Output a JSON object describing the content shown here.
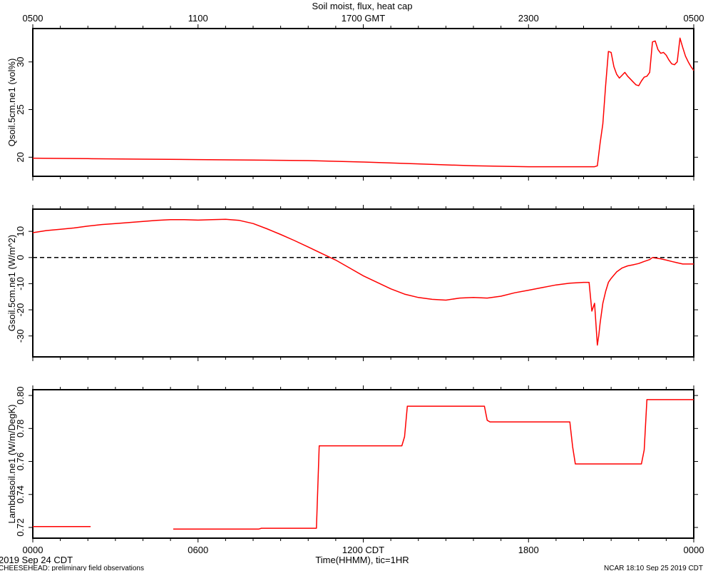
{
  "title": "Soil moist, flux, heat cap",
  "top_axis": {
    "ticks": [
      {
        "hour": 0,
        "label": "0500"
      },
      {
        "hour": 6,
        "label": "1100"
      },
      {
        "hour": 12,
        "label": "1700 GMT"
      },
      {
        "hour": 18,
        "label": "2300"
      },
      {
        "hour": 24,
        "label": "0500"
      }
    ]
  },
  "bottom_axis": {
    "ticks": [
      {
        "hour": 0,
        "label": "0000"
      },
      {
        "hour": 6,
        "label": "0600"
      },
      {
        "hour": 12,
        "label": "1200 CDT"
      },
      {
        "hour": 18,
        "label": "1800"
      },
      {
        "hour": 24,
        "label": "0000"
      }
    ],
    "xlabel": "Time(HHMM), tic=1HR",
    "start_label": "2019 Sep 24 CDT"
  },
  "footer": {
    "left": "CHEESEHEAD: preliminary field observations",
    "right": "NCAR 18:10 Sep 25 2019 CDT"
  },
  "colors": {
    "series": "#ff0000",
    "axis": "#000000",
    "zero_line": "#000000"
  },
  "chart_data": [
    {
      "type": "line",
      "ylabel": "Qsoil.5cm.ne1 (vol%)",
      "xlim": [
        0,
        24
      ],
      "ylim": [
        18,
        33.5
      ],
      "yticks": [
        20,
        25,
        30
      ],
      "series": [
        {
          "x": [
            0,
            2,
            4,
            6,
            8,
            10,
            12,
            14,
            16,
            18,
            20,
            20.4,
            20.5,
            20.6,
            20.7,
            20.8,
            20.9,
            21.0,
            21.1,
            21.2,
            21.3,
            21.4,
            21.5,
            21.6,
            21.7,
            21.8,
            21.9,
            22.0,
            22.1,
            22.2,
            22.3,
            22.4,
            22.5,
            22.6,
            22.7,
            22.8,
            22.9,
            23.0,
            23.1,
            23.2,
            23.3,
            23.4,
            23.5,
            23.6,
            23.7,
            23.8,
            23.9,
            24.0
          ],
          "y": [
            19.9,
            19.85,
            19.8,
            19.75,
            19.7,
            19.65,
            19.5,
            19.3,
            19.1,
            19.0,
            19.0,
            19.0,
            19.1,
            21.5,
            23.5,
            27.5,
            31.1,
            31.0,
            29.5,
            28.7,
            28.3,
            28.6,
            28.9,
            28.5,
            28.2,
            27.9,
            27.6,
            27.5,
            28.0,
            28.4,
            28.5,
            28.9,
            32.1,
            32.2,
            31.3,
            30.9,
            31.0,
            30.7,
            30.2,
            29.8,
            29.7,
            30.0,
            32.5,
            31.5,
            30.6,
            30.0,
            29.5,
            29.1
          ]
        }
      ]
    },
    {
      "type": "line",
      "ylabel": "Gsoil.5cm.ne1 (W/m^2)",
      "xlim": [
        0,
        24
      ],
      "ylim": [
        -38,
        18.5
      ],
      "yticks": [
        -30,
        -20,
        -10,
        0,
        10
      ],
      "zero_line": true,
      "series": [
        {
          "x": [
            0,
            0.5,
            1,
            1.5,
            2,
            2.5,
            3,
            3.5,
            4,
            4.5,
            5,
            5.5,
            6,
            6.5,
            7,
            7.5,
            8,
            8.5,
            9,
            9.5,
            10,
            10.5,
            10.8,
            11,
            11.5,
            12,
            12.5,
            13,
            13.5,
            14,
            14.5,
            15,
            15.5,
            16,
            16.5,
            17,
            17.5,
            18,
            18.5,
            19,
            19.5,
            20,
            20.15,
            20.2,
            20.3,
            20.4,
            20.5,
            20.55,
            20.6,
            20.7,
            20.8,
            20.9,
            21,
            21.2,
            21.4,
            21.6,
            21.8,
            22,
            22.2,
            22.4,
            22.5,
            22.6,
            22.8,
            23,
            23.2,
            23.4,
            23.6,
            24
          ],
          "y": [
            9.5,
            10.3,
            10.8,
            11.3,
            12,
            12.6,
            13,
            13.4,
            13.8,
            14.2,
            14.5,
            14.5,
            14.3,
            14.5,
            14.6,
            14.2,
            13,
            11,
            8.8,
            6.5,
            4,
            1.5,
            0,
            -1,
            -4,
            -7,
            -9.5,
            -12,
            -14,
            -15.3,
            -16,
            -16.3,
            -15.5,
            -15.3,
            -15.5,
            -14.8,
            -13.5,
            -12.5,
            -11.5,
            -10.5,
            -9.8,
            -9.5,
            -9.5,
            -9.5,
            -20.5,
            -17.5,
            -33.5,
            -30,
            -25,
            -17.5,
            -13,
            -9.5,
            -8,
            -5.5,
            -4,
            -3.2,
            -2.8,
            -2.3,
            -1.5,
            -0.8,
            0,
            -0.2,
            -0.5,
            -1,
            -1.5,
            -2,
            -2.5,
            -2.5
          ]
        }
      ]
    },
    {
      "type": "line",
      "ylabel": "Lambdasoil.ne1 (W/m/DegK)",
      "xlim": [
        0,
        24
      ],
      "ylim": [
        0.7135,
        0.8035
      ],
      "yticks": [
        0.72,
        0.74,
        0.76,
        0.78,
        0.8
      ],
      "series": [
        {
          "x": [
            0,
            2.1
          ],
          "y": [
            0.7205,
            0.7205
          ]
        },
        {
          "x": [
            5.1,
            8.2,
            8.3,
            10.3,
            10.4,
            13.4,
            13.5,
            13.6,
            16.4,
            16.5,
            16.6,
            19.5,
            19.6,
            19.7,
            22.1,
            22.2,
            22.3,
            24
          ],
          "y": [
            0.719,
            0.719,
            0.7195,
            0.7195,
            0.7695,
            0.7695,
            0.775,
            0.7935,
            0.7935,
            0.785,
            0.784,
            0.784,
            0.769,
            0.7585,
            0.7585,
            0.767,
            0.7975,
            0.7975
          ]
        }
      ]
    }
  ]
}
